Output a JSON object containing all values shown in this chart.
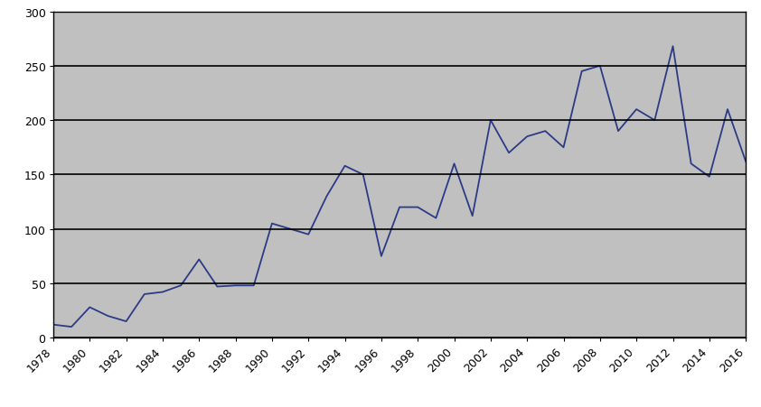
{
  "years": [
    1978,
    1979,
    1980,
    1981,
    1982,
    1983,
    1984,
    1985,
    1986,
    1987,
    1988,
    1989,
    1990,
    1991,
    1992,
    1993,
    1994,
    1995,
    1996,
    1997,
    1998,
    1999,
    2000,
    2001,
    2002,
    2003,
    2004,
    2005,
    2006,
    2007,
    2008,
    2009,
    2010,
    2011,
    2012,
    2013,
    2014,
    2015,
    2016
  ],
  "values": [
    12,
    10,
    28,
    20,
    15,
    40,
    42,
    48,
    72,
    47,
    48,
    48,
    105,
    100,
    95,
    130,
    158,
    150,
    75,
    120,
    120,
    110,
    160,
    112,
    200,
    170,
    185,
    190,
    175,
    245,
    250,
    190,
    210,
    200,
    268,
    160,
    148,
    210,
    162
  ],
  "line_color": "#2c3b87",
  "plot_bg_color": "#c0c0c0",
  "outer_bg_color": "#ffffff",
  "ylim": [
    0,
    300
  ],
  "yticks": [
    0,
    50,
    100,
    150,
    200,
    250,
    300
  ],
  "xtick_step": 2,
  "grid_color": "#000000",
  "grid_linewidth": 1.2,
  "line_width": 1.3,
  "tick_fontsize": 9,
  "spine_color": "#000000",
  "spine_linewidth": 1.0
}
